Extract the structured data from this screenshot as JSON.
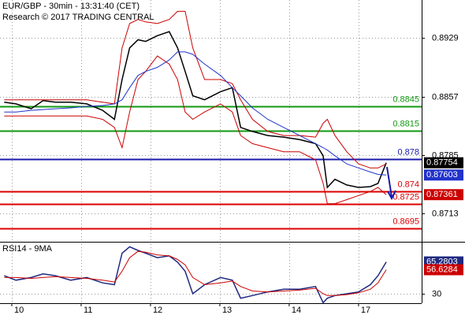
{
  "chart_data": [
    {
      "type": "line",
      "title": "EUR/GBP - 30min - 13:31:40 (CET)",
      "subtitle": "Research © 2017 TRADING CENTRAL",
      "x": [
        -0.11,
        0.06,
        0.28,
        0.45,
        0.63,
        0.85,
        1.08,
        1.31,
        1.48,
        1.59,
        1.7,
        1.82,
        1.93,
        2.1,
        2.27,
        2.39,
        2.5,
        2.61,
        2.78,
        3.01,
        3.18,
        3.3,
        3.47,
        3.69,
        3.92,
        4.15,
        4.38,
        4.49,
        4.55,
        4.66,
        4.83,
        5.0,
        5.17,
        5.28,
        5.4
      ],
      "xlim": [
        -0.17,
        5.91
      ],
      "ylim": [
        0.868,
        0.8976
      ],
      "yticks": [
        0.8929,
        0.8857,
        0.8785,
        0.8713
      ],
      "grid": true,
      "series": [
        {
          "color": "#000000",
          "last_label": true,
          "values": [
            0.885,
            0.8848,
            0.8842,
            0.8852,
            0.885,
            0.885,
            0.8848,
            0.884,
            0.8829,
            0.8878,
            0.8917,
            0.8927,
            0.8925,
            0.8932,
            0.8937,
            0.8917,
            0.8888,
            0.8858,
            0.8853,
            0.8863,
            0.8868,
            0.8819,
            0.8814,
            0.8809,
            0.8807,
            0.8804,
            0.8799,
            0.8784,
            0.8745,
            0.8755,
            0.8748,
            0.8745,
            0.8746,
            0.875,
            0.87754
          ]
        },
        {
          "color": "#cc0000",
          "last_label": false,
          "values": [
            0.8853,
            0.8853,
            0.8853,
            0.8853,
            0.8853,
            0.8853,
            0.8853,
            0.885,
            0.8848,
            0.8917,
            0.8947,
            0.8952,
            0.8949,
            0.8947,
            0.8952,
            0.8962,
            0.8962,
            0.8917,
            0.8878,
            0.8878,
            0.8873,
            0.8853,
            0.8829,
            0.8814,
            0.8809,
            0.8809,
            0.8807,
            0.8824,
            0.8829,
            0.8809,
            0.8789,
            0.8774,
            0.8769,
            0.8769,
            0.8774
          ]
        },
        {
          "color": "#cc0000",
          "last_label": true,
          "values": [
            0.8833,
            0.8833,
            0.8833,
            0.8833,
            0.8833,
            0.8833,
            0.8833,
            0.8829,
            0.8819,
            0.8794,
            0.8838,
            0.8878,
            0.8888,
            0.8907,
            0.8897,
            0.8878,
            0.8838,
            0.8829,
            0.8838,
            0.8848,
            0.8838,
            0.8809,
            0.8799,
            0.8794,
            0.8789,
            0.8789,
            0.8779,
            0.875,
            0.8725,
            0.8725,
            0.873,
            0.8735,
            0.874,
            0.8745,
            0.87361
          ]
        },
        {
          "color": "#2233cc",
          "last_label": true,
          "values": [
            0.8838,
            0.8838,
            0.884,
            0.8841,
            0.8842,
            0.8843,
            0.8845,
            0.8846,
            0.8848,
            0.8853,
            0.8868,
            0.8883,
            0.8888,
            0.8893,
            0.8902,
            0.8912,
            0.8912,
            0.8909,
            0.8897,
            0.8883,
            0.8868,
            0.8858,
            0.8843,
            0.8829,
            0.8819,
            0.8809,
            0.8799,
            0.8794,
            0.8791,
            0.8784,
            0.8774,
            0.8769,
            0.8764,
            0.8761,
            0.87603
          ]
        }
      ],
      "levels": [
        {
          "value": 0.8845,
          "color": "#119911"
        },
        {
          "value": 0.8815,
          "color": "#119911"
        },
        {
          "value": 0.878,
          "color": "#1a1aa8"
        },
        {
          "value": 0.874,
          "color": "#dd0000"
        },
        {
          "value": 0.8725,
          "color": "#dd0000"
        },
        {
          "value": 0.8695,
          "color": "#dd0000"
        }
      ]
    },
    {
      "type": "line",
      "title": "RSI14 - 9MA",
      "xticks": [
        {
          "value": 0,
          "label": "10"
        },
        {
          "value": 1,
          "label": "11"
        },
        {
          "value": 2,
          "label": "12"
        },
        {
          "value": 3,
          "label": "13"
        },
        {
          "value": 4,
          "label": "14"
        },
        {
          "value": 5,
          "label": "17"
        }
      ],
      "ylim": [
        19.5,
        85
      ],
      "yticks": [
        30
      ],
      "grid": true,
      "series": [
        {
          "color": "#1f2a80",
          "last_label": true,
          "values": [
            50,
            45,
            48,
            52,
            50,
            45,
            48,
            42,
            40,
            75,
            82,
            78,
            75,
            70,
            72,
            65,
            55,
            30,
            40,
            48,
            45,
            25,
            28,
            32,
            35,
            35,
            38,
            20,
            25,
            28,
            30,
            32,
            40,
            50,
            65.2803
          ]
        },
        {
          "color": "#cc0000",
          "last_label": true,
          "values": [
            48,
            48,
            47,
            48,
            49,
            48,
            47,
            45,
            43,
            55,
            70,
            77,
            76,
            73,
            72,
            68,
            62,
            48,
            40,
            42,
            44,
            38,
            33,
            32,
            33,
            34,
            36,
            30,
            28,
            28,
            29,
            31,
            35,
            42,
            56.6284
          ]
        }
      ]
    }
  ]
}
